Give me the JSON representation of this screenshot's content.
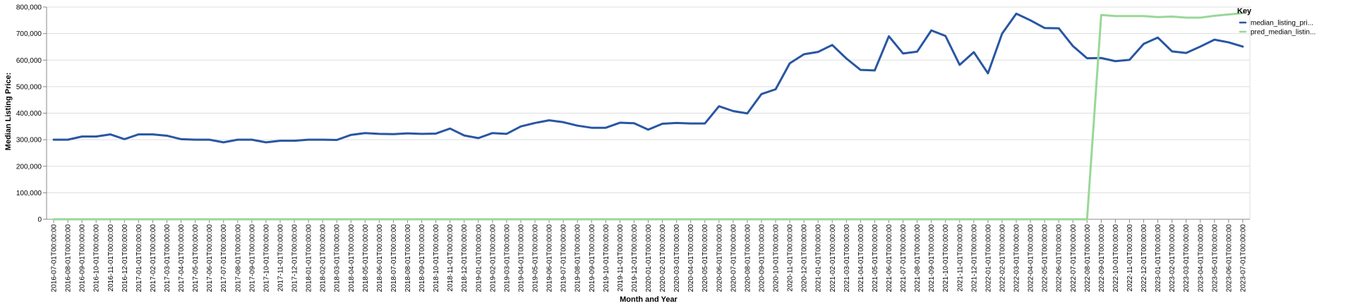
{
  "chart_data": {
    "type": "line",
    "xlabel": "Month and Year",
    "ylabel": "Median Listing Price:",
    "ylim": [
      0,
      800000
    ],
    "y_ticks": [
      "0",
      "100,000",
      "200,000",
      "300,000",
      "400,000",
      "500,000",
      "600,000",
      "700,000",
      "800,000"
    ],
    "grid": true,
    "legend": {
      "title": "Key",
      "placement": "right"
    },
    "x": [
      "2016-07-01T00:00:00",
      "2016-08-01T00:00:00",
      "2016-09-01T00:00:00",
      "2016-10-01T00:00:00",
      "2016-11-01T00:00:00",
      "2016-12-01T00:00:00",
      "2017-01-01T00:00:00",
      "2017-02-01T00:00:00",
      "2017-03-01T00:00:00",
      "2017-04-01T00:00:00",
      "2017-05-01T00:00:00",
      "2017-06-01T00:00:00",
      "2017-07-01T00:00:00",
      "2017-08-01T00:00:00",
      "2017-09-01T00:00:00",
      "2017-10-01T00:00:00",
      "2017-11-01T00:00:00",
      "2017-12-01T00:00:00",
      "2018-01-01T00:00:00",
      "2018-02-01T00:00:00",
      "2018-03-01T00:00:00",
      "2018-04-01T00:00:00",
      "2018-05-01T00:00:00",
      "2018-06-01T00:00:00",
      "2018-07-01T00:00:00",
      "2018-08-01T00:00:00",
      "2018-09-01T00:00:00",
      "2018-10-01T00:00:00",
      "2018-11-01T00:00:00",
      "2018-12-01T00:00:00",
      "2019-01-01T00:00:00",
      "2019-02-01T00:00:00",
      "2019-03-01T00:00:00",
      "2019-04-01T00:00:00",
      "2019-05-01T00:00:00",
      "2019-06-01T00:00:00",
      "2019-07-01T00:00:00",
      "2019-08-01T00:00:00",
      "2019-09-01T00:00:00",
      "2019-10-01T00:00:00",
      "2019-11-01T00:00:00",
      "2019-12-01T00:00:00",
      "2020-01-01T00:00:00",
      "2020-02-01T00:00:00",
      "2020-03-01T00:00:00",
      "2020-04-01T00:00:00",
      "2020-05-01T00:00:00",
      "2020-06-01T00:00:00",
      "2020-07-01T00:00:00",
      "2020-08-01T00:00:00",
      "2020-09-01T00:00:00",
      "2020-10-01T00:00:00",
      "2020-11-01T00:00:00",
      "2020-12-01T00:00:00",
      "2021-01-01T00:00:00",
      "2021-02-01T00:00:00",
      "2021-03-01T00:00:00",
      "2021-04-01T00:00:00",
      "2021-05-01T00:00:00",
      "2021-06-01T00:00:00",
      "2021-07-01T00:00:00",
      "2021-08-01T00:00:00",
      "2021-09-01T00:00:00",
      "2021-10-01T00:00:00",
      "2021-11-01T00:00:00",
      "2021-12-01T00:00:00",
      "2022-01-01T00:00:00",
      "2022-02-01T00:00:00",
      "2022-03-01T00:00:00",
      "2022-04-01T00:00:00",
      "2022-05-01T00:00:00",
      "2022-06-01T00:00:00",
      "2022-07-01T00:00:00",
      "2022-08-01T00:00:00",
      "2022-09-01T00:00:00",
      "2022-10-01T00:00:00",
      "2022-11-01T00:00:00",
      "2022-12-01T00:00:00",
      "2023-01-01T00:00:00",
      "2023-02-01T00:00:00",
      "2023-03-01T00:00:00",
      "2023-04-01T00:00:00",
      "2023-05-01T00:00:00",
      "2023-06-01T00:00:00",
      "2023-07-01T00:00:00"
    ],
    "series": [
      {
        "name": "median_listing_pri...",
        "color": "#2856a3",
        "values": [
          300000,
          300000,
          312000,
          312000,
          320000,
          302000,
          320000,
          320000,
          315000,
          302000,
          300000,
          300000,
          290000,
          300000,
          300000,
          290000,
          296000,
          296000,
          300000,
          300000,
          299000,
          318000,
          325000,
          322000,
          321000,
          324000,
          322000,
          323000,
          342000,
          316000,
          306000,
          325000,
          322000,
          350000,
          363000,
          373000,
          366000,
          353000,
          345000,
          345000,
          364000,
          362000,
          338000,
          360000,
          363000,
          361000,
          361000,
          426000,
          408000,
          399000,
          472000,
          490000,
          588000,
          622000,
          631000,
          657000,
          606000,
          563000,
          561000,
          690000,
          625000,
          632000,
          712000,
          691000,
          582000,
          630000,
          550000,
          700000,
          775000,
          750000,
          721000,
          720000,
          653000,
          607000,
          608000,
          596000,
          601000,
          661000,
          685000,
          633000,
          627000,
          651000,
          677000,
          667000,
          651000
        ]
      },
      {
        "name": "pred_median_listin...",
        "color": "#98d897",
        "values": [
          0,
          0,
          0,
          0,
          0,
          0,
          0,
          0,
          0,
          0,
          0,
          0,
          0,
          0,
          0,
          0,
          0,
          0,
          0,
          0,
          0,
          0,
          0,
          0,
          0,
          0,
          0,
          0,
          0,
          0,
          0,
          0,
          0,
          0,
          0,
          0,
          0,
          0,
          0,
          0,
          0,
          0,
          0,
          0,
          0,
          0,
          0,
          0,
          0,
          0,
          0,
          0,
          0,
          0,
          0,
          0,
          0,
          0,
          0,
          0,
          0,
          0,
          0,
          0,
          0,
          0,
          0,
          0,
          0,
          0,
          0,
          0,
          0,
          0,
          770000,
          766000,
          766000,
          766000,
          762000,
          764000,
          760000,
          760000,
          767000,
          772000,
          777000
        ]
      }
    ]
  }
}
